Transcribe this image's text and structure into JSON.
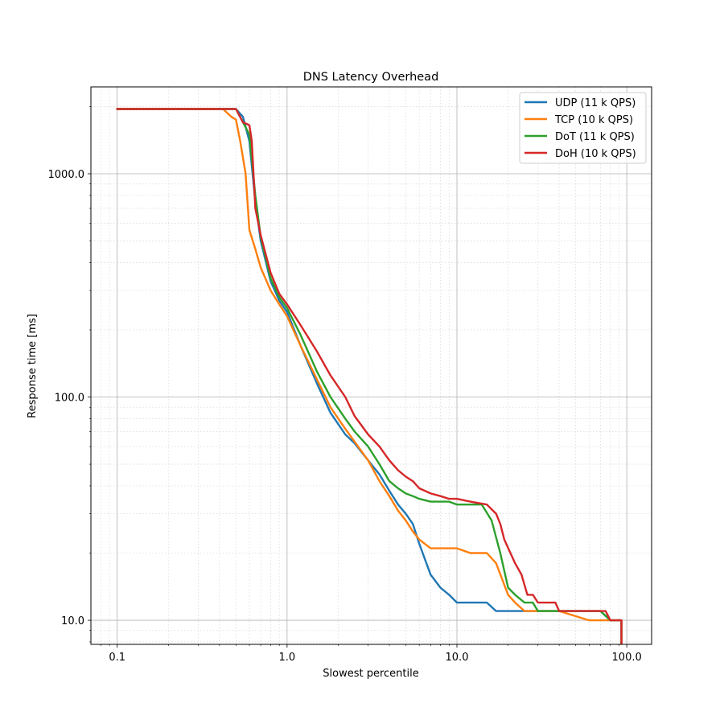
{
  "chart_data": {
    "type": "line",
    "title": "DNS Latency Overhead",
    "xlabel": "Slowest percentile",
    "ylabel": "Response time [ms]",
    "xscale": "log",
    "yscale": "log",
    "xlim": [
      0.07,
      140
    ],
    "ylim": [
      7.8,
      2450
    ],
    "xticks": [
      0.1,
      1,
      10,
      100
    ],
    "xtick_labels": [
      "0.1",
      "1.0",
      "10.0",
      "100.0"
    ],
    "yticks": [
      10,
      100,
      1000
    ],
    "ytick_labels": [
      "10.0",
      "100.0",
      "1000.0"
    ],
    "grid": true,
    "legend_position": "top-right",
    "colors": {
      "UDP (11 k QPS)": "#1f77b4",
      "TCP (10 k QPS)": "#ff7f0e",
      "DoT (11 k QPS)": "#2ca02c",
      "DoH (10 k QPS)": "#d62728"
    },
    "series": [
      {
        "name": "UDP (11 k QPS)",
        "x": [
          0.1,
          0.5,
          0.55,
          0.6,
          0.65,
          0.7,
          0.8,
          0.9,
          1.0,
          1.2,
          1.5,
          1.8,
          2.2,
          2.5,
          3.0,
          3.5,
          4.0,
          4.5,
          5.0,
          5.5,
          6.0,
          7.0,
          8.0,
          9.0,
          10.0,
          12.0,
          15.0,
          17.0,
          20.0,
          25.0,
          30.0,
          50.0,
          60.0,
          70.0,
          80.0,
          93.0,
          93.0
        ],
        "y": [
          1950,
          1950,
          1800,
          1400,
          750,
          500,
          330,
          270,
          240,
          170,
          115,
          85,
          68,
          62,
          52,
          45,
          38,
          33,
          30,
          27,
          22,
          16,
          14,
          13,
          12,
          12,
          12,
          11,
          11,
          11,
          11,
          11,
          11,
          11,
          10,
          10,
          7.8
        ]
      },
      {
        "name": "TCP (10 k QPS)",
        "x": [
          0.1,
          0.42,
          0.47,
          0.5,
          0.53,
          0.57,
          0.6,
          0.65,
          0.7,
          0.8,
          0.9,
          1.0,
          1.2,
          1.5,
          1.8,
          2.2,
          2.5,
          3.0,
          3.5,
          4.0,
          4.5,
          5.0,
          5.5,
          6.0,
          7.0,
          8.0,
          10.0,
          12.0,
          15.0,
          17.0,
          20.0,
          22.0,
          25.0,
          30.0,
          40.0,
          60.0,
          70.0,
          80.0,
          93.0,
          93.0
        ],
        "y": [
          1950,
          1950,
          1800,
          1750,
          1400,
          1000,
          560,
          460,
          380,
          300,
          260,
          230,
          170,
          120,
          90,
          72,
          63,
          52,
          42,
          36,
          31,
          28,
          25,
          23,
          21,
          21,
          21,
          20,
          20,
          18,
          13,
          12,
          11,
          11,
          11,
          10,
          10,
          10,
          10,
          7.8
        ]
      },
      {
        "name": "DoT (11 k QPS)",
        "x": [
          0.1,
          0.5,
          0.55,
          0.6,
          0.65,
          0.7,
          0.8,
          0.9,
          1.0,
          1.2,
          1.5,
          1.8,
          2.2,
          2.5,
          3.0,
          3.5,
          4.0,
          4.5,
          5.0,
          5.5,
          6.0,
          7.0,
          8.0,
          9.0,
          10.0,
          12.0,
          14.0,
          16.0,
          18.0,
          20.0,
          22.0,
          25.0,
          28.0,
          30.0,
          40.0,
          60.0,
          70.0,
          80.0,
          93.0,
          93.0
        ],
        "y": [
          1950,
          1950,
          1700,
          1500,
          800,
          520,
          340,
          280,
          250,
          190,
          130,
          100,
          80,
          70,
          60,
          50,
          42,
          39,
          37,
          36,
          35,
          34,
          34,
          34,
          33,
          33,
          33,
          28,
          20,
          14,
          13,
          12,
          12,
          11,
          11,
          11,
          11,
          10,
          10,
          7.8
        ]
      },
      {
        "name": "DoH (10 k QPS)",
        "x": [
          0.1,
          0.5,
          0.55,
          0.6,
          0.62,
          0.65,
          0.7,
          0.8,
          0.9,
          1.0,
          1.2,
          1.5,
          1.8,
          2.2,
          2.5,
          3.0,
          3.5,
          4.0,
          4.5,
          5.0,
          5.5,
          6.0,
          7.0,
          8.0,
          9.0,
          10.0,
          12.0,
          15.0,
          17.0,
          18.0,
          19.0,
          22.0,
          24.0,
          26.0,
          28.0,
          30.0,
          38.0,
          40.0,
          60.0,
          75.0,
          80.0,
          93.0,
          93.0
        ],
        "y": [
          1950,
          1950,
          1700,
          1650,
          1400,
          700,
          530,
          360,
          290,
          260,
          210,
          160,
          125,
          100,
          82,
          68,
          60,
          52,
          47,
          44,
          42,
          39,
          37,
          36,
          35,
          35,
          34,
          33,
          30,
          27,
          23,
          18,
          16,
          13,
          13,
          12,
          12,
          11,
          11,
          11,
          10,
          10,
          7.8
        ]
      }
    ]
  }
}
